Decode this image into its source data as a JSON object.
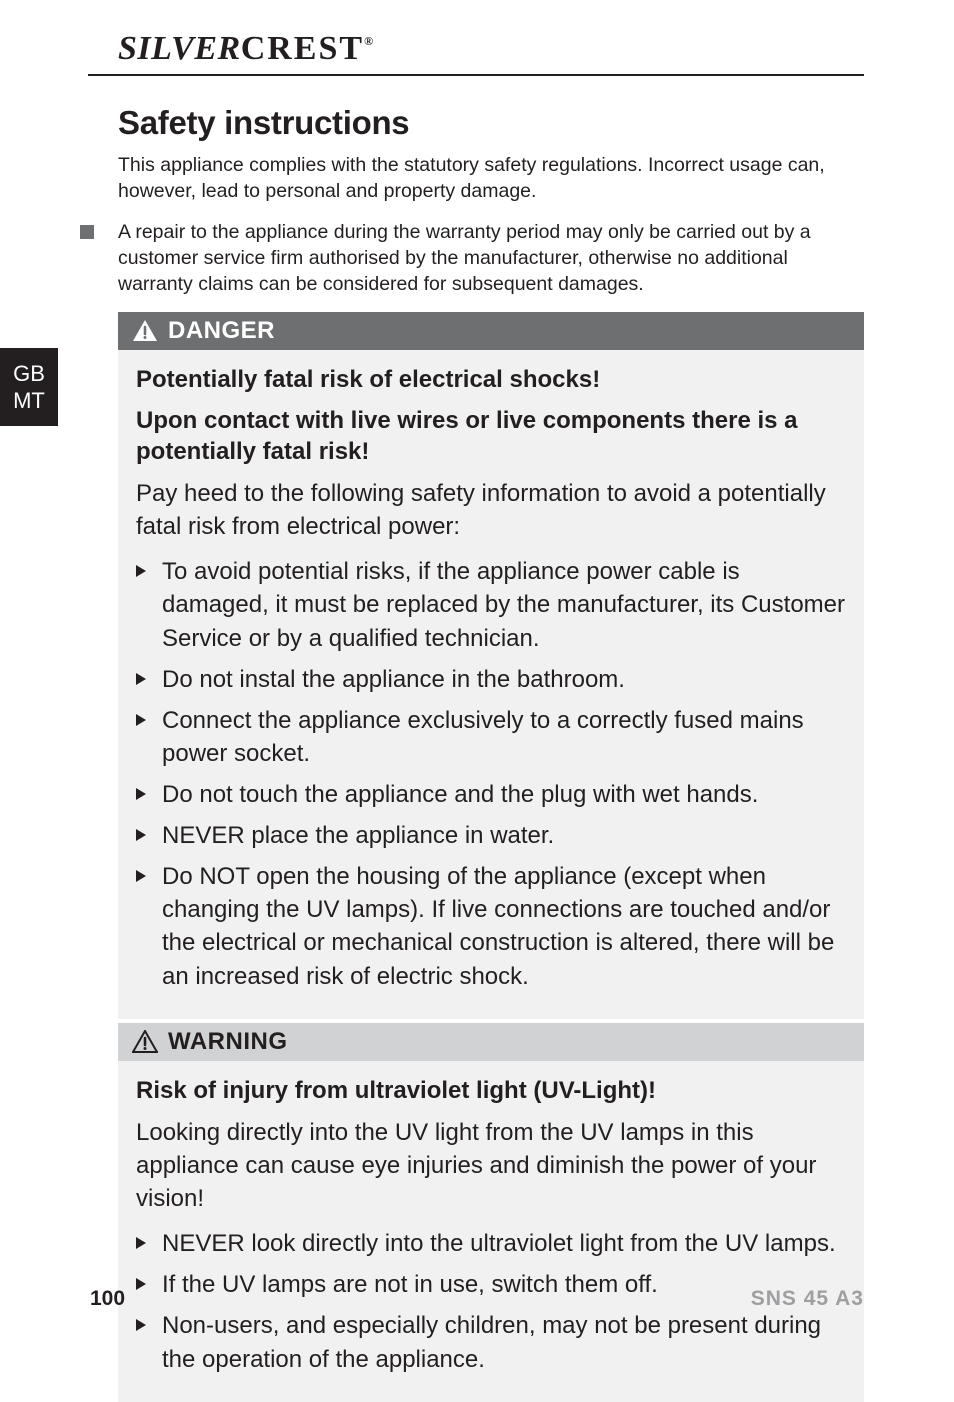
{
  "brand": {
    "part1": "SILVER",
    "part2": "CREST",
    "reg": "®"
  },
  "side_tab": {
    "line1": "GB",
    "line2": "MT"
  },
  "section_title": "Safety instructions",
  "intro": "This appliance complies with the statutory safety regulations. Incorrect usage can, however, lead to personal and property damage.",
  "square_items": [
    "A repair to the appliance during the warranty period may only be carried out by a customer service firm authorised by the manufacturer, otherwise no additional warranty claims can be considered for subsequent damages."
  ],
  "danger": {
    "label": "DANGER",
    "header_bg": "#6e6f71",
    "icon_fill": "#ffffff",
    "icon_stroke": "#6e6f71",
    "sub1": "Potentially fatal risk of electrical shocks!",
    "sub2": "Upon contact with live wires or live components there is a potentially fatal risk!",
    "para": "Pay heed to the following safety information to avoid a potentially fatal risk from electrical power:",
    "items": [
      "To avoid potential risks, if the appliance power cable is damaged, it must be replaced by the manufacturer, its Customer Service or by a qualified technician.",
      "Do not instal the appliance in the bathroom.",
      "Connect the appliance exclusively to a correctly fused mains power socket.",
      "Do not touch the appliance and the plug with wet hands.",
      "NEVER place the appliance in water.",
      "Do NOT open the housing of the appliance (except when changing the UV lamps). If live connections are touched and/or the electrical or mechanical construction is altered, there will be an increased risk of electric shock."
    ]
  },
  "warning": {
    "label": "WARNING",
    "header_bg": "#d1d2d3",
    "icon_fill": "#231f20",
    "icon_stroke": "#d1d2d3",
    "sub1": "Risk of injury from ultraviolet light (UV-Light)!",
    "para": "Looking directly into the UV light from the UV lamps in this appliance can cause eye injuries and diminish the power of your vision!",
    "items": [
      "NEVER look directly into the ultraviolet light from the UV lamps.",
      "If the UV lamps are not in use, switch them off.",
      "Non-users, and especially children, may not be present during the operation of the appliance."
    ]
  },
  "footer": {
    "page": "100",
    "model": "SNS 45 A3"
  },
  "colors": {
    "text": "#231f20",
    "square_marker": "#6e6f71",
    "body_bg": "#f1f1f2",
    "model_color": "#9e9fa1"
  }
}
